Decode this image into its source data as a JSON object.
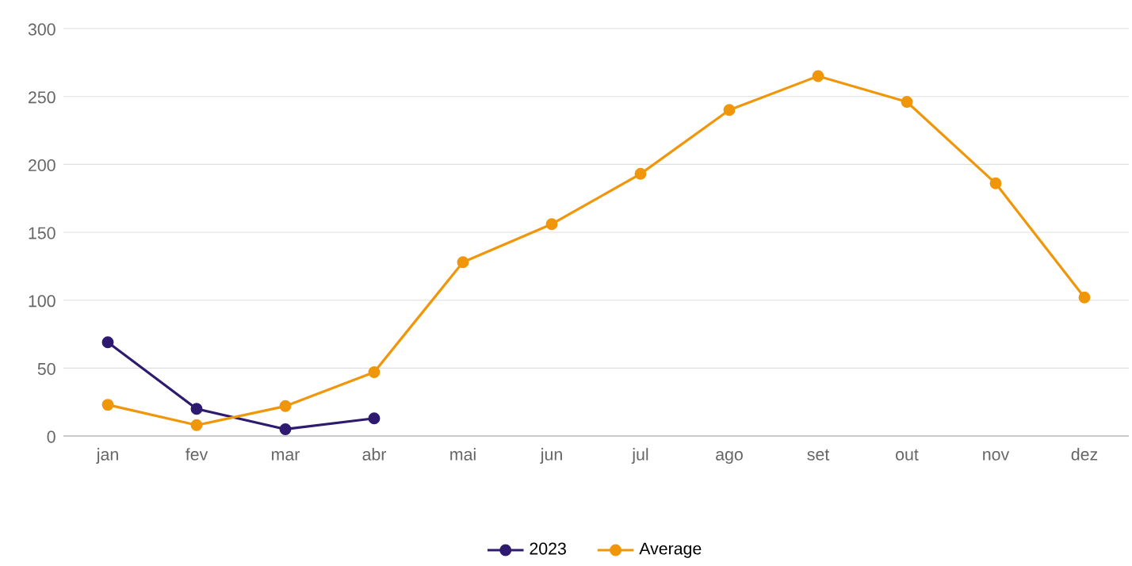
{
  "chart_data": {
    "type": "line",
    "categories": [
      "jan",
      "fev",
      "mar",
      "abr",
      "mai",
      "jun",
      "jul",
      "ago",
      "set",
      "out",
      "nov",
      "dez"
    ],
    "series": [
      {
        "name": "2023",
        "color": "#2e1a6e",
        "values": [
          69,
          20,
          5,
          13,
          null,
          null,
          null,
          null,
          null,
          null,
          null,
          null
        ]
      },
      {
        "name": "Average",
        "color": "#f0960a",
        "values": [
          23,
          8,
          22,
          47,
          128,
          156,
          193,
          240,
          265,
          246,
          186,
          102
        ]
      }
    ],
    "ylim": [
      0,
      300
    ],
    "yticks": [
      0,
      50,
      100,
      150,
      200,
      250,
      300
    ],
    "grid": "y",
    "legend": "bottom",
    "marker": "circle",
    "line_style": "solid"
  }
}
